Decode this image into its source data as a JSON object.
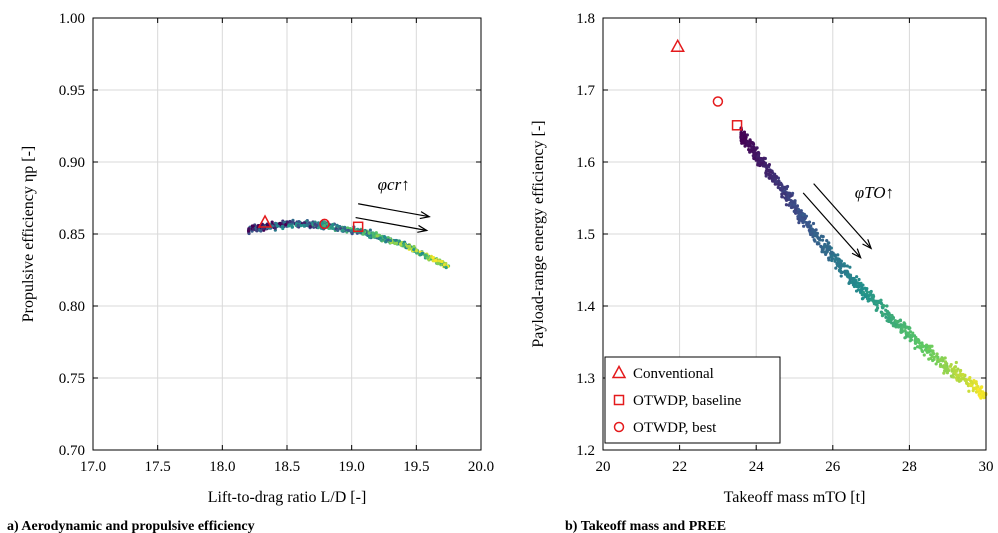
{
  "colors": {
    "marker_red": "#e41a1c",
    "grid": "#d9d9d9",
    "colormap": [
      "#440154",
      "#3b528b",
      "#21918c",
      "#5ec962",
      "#fde725"
    ]
  },
  "chart_data": [
    {
      "type": "scatter",
      "caption": "a) Aerodynamic and propulsive efficiency",
      "xlabel": "Lift-to-drag ratio L/D [-]",
      "ylabel": "Propulsive efficiency ηp [-]",
      "xlim": [
        17.0,
        20.0
      ],
      "ylim": [
        0.7,
        1.0
      ],
      "xticks": [
        "17.0",
        "17.5",
        "18.0",
        "18.5",
        "19.0",
        "19.5",
        "20.0"
      ],
      "yticks": [
        "0.70",
        "0.75",
        "0.80",
        "0.85",
        "0.90",
        "0.95",
        "1.00"
      ],
      "grid": true,
      "cloud": {
        "color_by": "φcr",
        "x_range": [
          18.2,
          19.75
        ],
        "curve": [
          [
            18.2,
            0.853
          ],
          [
            18.5,
            0.857
          ],
          [
            18.8,
            0.856
          ],
          [
            19.1,
            0.851
          ],
          [
            19.4,
            0.843
          ],
          [
            19.75,
            0.827
          ]
        ]
      },
      "annotation": {
        "text": "φcr↑",
        "arrow_from": [
          19.05,
          0.871
        ],
        "arrow_to": [
          19.6,
          0.862
        ]
      },
      "points": [
        {
          "name": "Conventional",
          "marker": "triangle",
          "x": 18.33,
          "y": 0.858
        },
        {
          "name": "OTWDP, baseline",
          "marker": "square",
          "x": 19.05,
          "y": 0.855
        },
        {
          "name": "OTWDP, best",
          "marker": "circle",
          "x": 18.79,
          "y": 0.857
        }
      ]
    },
    {
      "type": "scatter",
      "caption": "b) Takeoff mass and PREE",
      "xlabel": "Takeoff mass mTO [t]",
      "ylabel": "Payload-range energy efficiency [-]",
      "xlim": [
        20,
        30
      ],
      "ylim": [
        1.2,
        1.8
      ],
      "xticks": [
        "20",
        "22",
        "24",
        "26",
        "28",
        "30"
      ],
      "yticks": [
        "1.2",
        "1.3",
        "1.4",
        "1.5",
        "1.6",
        "1.7",
        "1.8"
      ],
      "grid": true,
      "cloud": {
        "color_by": "φTO",
        "curve": [
          [
            23.6,
            1.64
          ],
          [
            24.5,
            1.575
          ],
          [
            25.3,
            1.515
          ],
          [
            26.2,
            1.455
          ],
          [
            27.0,
            1.41
          ],
          [
            28.0,
            1.36
          ],
          [
            29.0,
            1.315
          ],
          [
            30.0,
            1.275
          ]
        ]
      },
      "annotation": {
        "text": "φTO↑",
        "arrow_from": [
          25.5,
          1.57
        ],
        "arrow_to": [
          27.0,
          1.48
        ]
      },
      "points": [
        {
          "name": "Conventional",
          "marker": "triangle",
          "x": 21.95,
          "y": 1.76
        },
        {
          "name": "OTWDP, baseline",
          "marker": "square",
          "x": 23.5,
          "y": 1.651
        },
        {
          "name": "OTWDP, best",
          "marker": "circle",
          "x": 23.0,
          "y": 1.684
        }
      ],
      "legend": {
        "position": "bottom-left",
        "entries": [
          "Conventional",
          "OTWDP, baseline",
          "OTWDP, best"
        ]
      }
    }
  ]
}
